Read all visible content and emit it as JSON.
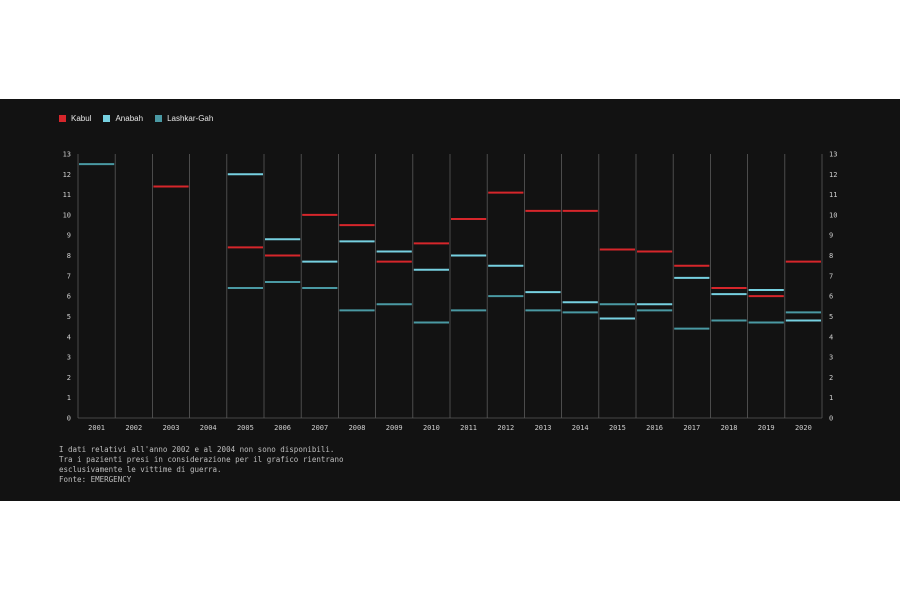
{
  "colors": {
    "background": "#121212",
    "grid": "#5a5a5a",
    "text": "#cfcfcf",
    "Kabul": "#d6262b",
    "Anabah": "#76d0e0",
    "Lashkar-Gah": "#4a99a3"
  },
  "chart_data": {
    "type": "step",
    "categories": [
      "2001",
      "2002",
      "2003",
      "2004",
      "2005",
      "2006",
      "2007",
      "2008",
      "2009",
      "2010",
      "2011",
      "2012",
      "2013",
      "2014",
      "2015",
      "2016",
      "2017",
      "2018",
      "2019",
      "2020"
    ],
    "ylim": [
      0,
      13
    ],
    "yticks": [
      0,
      1,
      2,
      3,
      4,
      5,
      6,
      7,
      8,
      9,
      10,
      11,
      12,
      13
    ],
    "grid": true,
    "legend_position": "top-left",
    "series": [
      {
        "name": "Kabul",
        "values": [
          null,
          null,
          11.4,
          null,
          8.4,
          8.0,
          10.0,
          9.5,
          7.7,
          8.6,
          9.8,
          11.1,
          10.2,
          10.2,
          8.3,
          8.2,
          7.5,
          6.4,
          6.0,
          7.7
        ]
      },
      {
        "name": "Anabah",
        "values": [
          null,
          null,
          null,
          null,
          12.0,
          8.8,
          7.7,
          8.7,
          8.2,
          7.3,
          8.0,
          7.5,
          6.2,
          5.7,
          4.9,
          5.6,
          6.9,
          6.1,
          6.3,
          4.8
        ]
      },
      {
        "name": "Lashkar-Gah",
        "values": [
          12.5,
          null,
          null,
          null,
          6.4,
          6.7,
          6.4,
          5.3,
          5.6,
          4.7,
          5.3,
          6.0,
          5.3,
          5.2,
          5.6,
          5.3,
          4.4,
          4.8,
          4.7,
          5.2
        ]
      }
    ]
  },
  "notes": [
    "I dati relativi all'anno 2002 e al 2004 non sono disponibili.",
    "Tra i pazienti presi in considerazione per il grafico rientrano",
    "esclusivamente le vittime di guerra.",
    "Fonte: EMERGENCY"
  ]
}
